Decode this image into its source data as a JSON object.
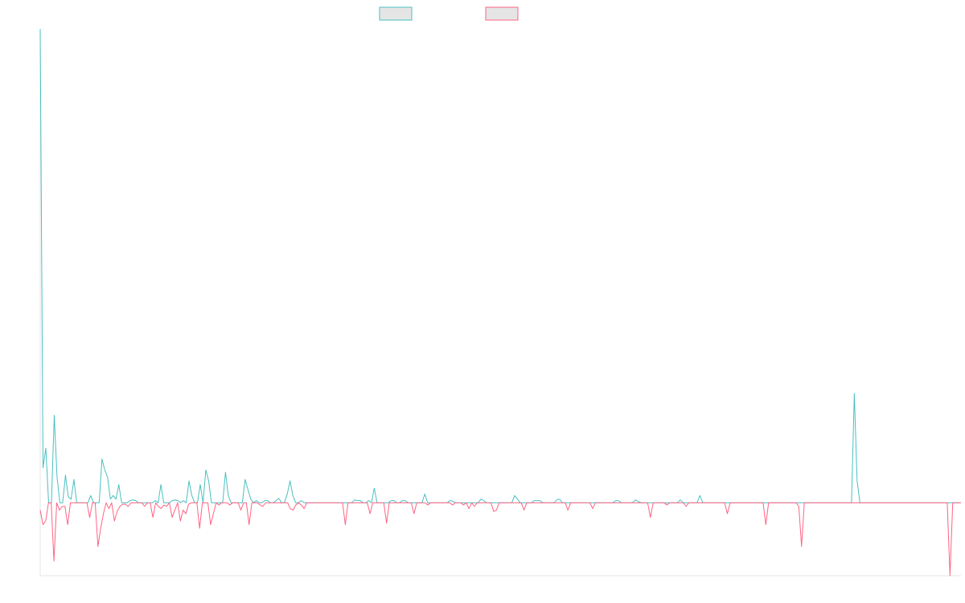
{
  "chart_data": {
    "type": "line",
    "title": "",
    "xlabel": "",
    "ylabel": "",
    "grid": false,
    "legend_position": "top-center",
    "ylim": [
      -100,
      650
    ],
    "x_points": 288,
    "series": [
      {
        "color": "#4bc0c0",
        "legend_fill": "#e5e5e5",
        "values": [
          650,
          48,
          75,
          0,
          0,
          120,
          35,
          0,
          0,
          38,
          8,
          5,
          32,
          0,
          0,
          0,
          0,
          0,
          10,
          0,
          0,
          0,
          60,
          45,
          35,
          5,
          10,
          5,
          25,
          0,
          0,
          0,
          3,
          4,
          3,
          0,
          0,
          0,
          0,
          0,
          0,
          3,
          0,
          25,
          0,
          0,
          0,
          3,
          4,
          3,
          0,
          3,
          0,
          30,
          10,
          0,
          0,
          25,
          0,
          45,
          30,
          0,
          0,
          0,
          0,
          0,
          42,
          10,
          0,
          0,
          0,
          0,
          0,
          32,
          18,
          5,
          0,
          3,
          0,
          0,
          3,
          3,
          0,
          0,
          3,
          6,
          0,
          0,
          12,
          30,
          10,
          0,
          0,
          3,
          0,
          0,
          0,
          0,
          0,
          0,
          0,
          0,
          0,
          0,
          0,
          0,
          0,
          0,
          0,
          0,
          0,
          0,
          4,
          3,
          3,
          0,
          0,
          3,
          0,
          20,
          0,
          0,
          0,
          0,
          0,
          3,
          3,
          0,
          0,
          3,
          3,
          0,
          0,
          0,
          0,
          0,
          0,
          12,
          0,
          0,
          0,
          0,
          0,
          0,
          0,
          0,
          3,
          2,
          0,
          0,
          0,
          0,
          0,
          0,
          0,
          0,
          0,
          5,
          3,
          0,
          0,
          0,
          0,
          0,
          0,
          0,
          0,
          0,
          0,
          10,
          5,
          0,
          0,
          0,
          0,
          0,
          3,
          3,
          3,
          0,
          0,
          0,
          0,
          0,
          4,
          5,
          0,
          0,
          0,
          0,
          0,
          0,
          0,
          0,
          0,
          0,
          0,
          0,
          0,
          0,
          0,
          0,
          0,
          0,
          0,
          3,
          3,
          0,
          0,
          0,
          0,
          0,
          4,
          2,
          0,
          0,
          0,
          0,
          0,
          0,
          0,
          0,
          0,
          0,
          0,
          0,
          0,
          0,
          4,
          0,
          0,
          0,
          0,
          0,
          0,
          10,
          0,
          0,
          0,
          0,
          0,
          0,
          0,
          0,
          0,
          0,
          0,
          0,
          0,
          0,
          0,
          0,
          0,
          0,
          0,
          0,
          0,
          0,
          0,
          0,
          0,
          0,
          0,
          0,
          0,
          0,
          0,
          0,
          0,
          0,
          0,
          0,
          0,
          0,
          0,
          0,
          0,
          0,
          0,
          0,
          0,
          0,
          0,
          0,
          0,
          0,
          0,
          0,
          0,
          0,
          150,
          30,
          0,
          0,
          0,
          0,
          0,
          0,
          0,
          0,
          0,
          0,
          0,
          0,
          0,
          0,
          0,
          0,
          0,
          0,
          0,
          0,
          0,
          0,
          0,
          0,
          0,
          0,
          0,
          0,
          0,
          0,
          0,
          0,
          0,
          0,
          0,
          0,
          0
        ]
      },
      {
        "color": "#ff6384",
        "legend_fill": "#e5e5e5",
        "values": [
          -10,
          -30,
          -25,
          0,
          0,
          -80,
          0,
          -10,
          -5,
          -5,
          -30,
          0,
          0,
          0,
          0,
          0,
          0,
          0,
          -20,
          0,
          0,
          -60,
          -35,
          -15,
          0,
          -8,
          0,
          -25,
          -12,
          -5,
          -2,
          -2,
          -5,
          0,
          0,
          0,
          0,
          0,
          -5,
          0,
          0,
          -20,
          0,
          -5,
          -8,
          -3,
          -5,
          0,
          -20,
          -10,
          0,
          -25,
          -10,
          -15,
          -2,
          0,
          0,
          0,
          -35,
          0,
          0,
          0,
          -30,
          -15,
          0,
          -3,
          0,
          0,
          0,
          -3,
          0,
          0,
          0,
          -10,
          0,
          0,
          -30,
          0,
          0,
          0,
          -3,
          -5,
          0,
          0,
          0,
          0,
          0,
          0,
          0,
          0,
          0,
          -8,
          -10,
          -3,
          0,
          -3,
          -8,
          0,
          0,
          0,
          0,
          0,
          0,
          0,
          0,
          0,
          0,
          0,
          0,
          0,
          0,
          -30,
          0,
          0,
          0,
          0,
          0,
          0,
          0,
          0,
          -15,
          0,
          0,
          0,
          0,
          0,
          -28,
          0,
          0,
          0,
          0,
          0,
          0,
          0,
          0,
          0,
          -15,
          0,
          0,
          0,
          0,
          -3,
          0,
          0,
          0,
          0,
          0,
          0,
          0,
          0,
          -3,
          0,
          0,
          0,
          -3,
          0,
          -8,
          0,
          -5,
          0,
          0,
          0,
          0,
          0,
          0,
          -12,
          -10,
          0,
          0,
          0,
          0,
          0,
          0,
          0,
          0,
          0,
          -10,
          0,
          0,
          0,
          0,
          0,
          0,
          0,
          0,
          0,
          0,
          0,
          0,
          0,
          0,
          0,
          -10,
          0,
          0,
          0,
          0,
          0,
          0,
          0,
          0,
          -8,
          0,
          0,
          0,
          0,
          0,
          0,
          0,
          0,
          0,
          0,
          0,
          0,
          0,
          0,
          0,
          0,
          0,
          0,
          0,
          0,
          -20,
          0,
          0,
          0,
          0,
          0,
          -3,
          0,
          0,
          0,
          0,
          0,
          0,
          -5,
          0,
          0,
          0,
          0,
          0,
          0,
          0,
          0,
          0,
          0,
          0,
          0,
          0,
          0,
          -15,
          0,
          0,
          0,
          0,
          0,
          0,
          0,
          0,
          0,
          0,
          0,
          0,
          0,
          -30,
          0,
          0,
          0,
          0,
          0,
          0,
          0,
          0,
          0,
          0,
          0,
          -5,
          -60,
          0,
          0,
          0,
          0,
          0,
          0,
          0,
          0,
          0,
          0,
          0,
          0,
          0,
          0,
          0,
          0,
          0,
          0,
          0,
          0,
          0,
          0,
          0,
          0,
          0,
          0,
          0,
          0,
          0,
          0,
          0,
          0,
          0,
          0,
          0,
          0,
          0,
          0,
          0,
          0,
          0,
          0,
          0,
          0,
          0,
          0,
          0,
          0,
          0,
          0,
          0,
          0,
          0,
          -100,
          0,
          0,
          0,
          0
        ]
      }
    ]
  }
}
